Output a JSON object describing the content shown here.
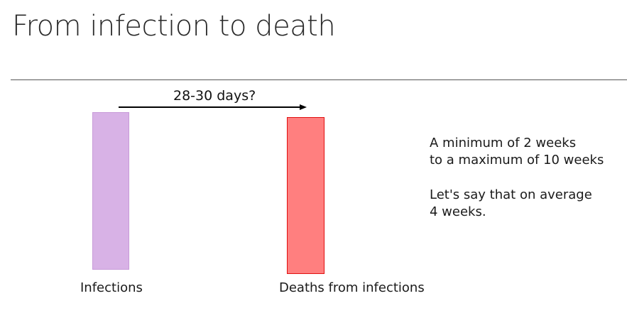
{
  "slide": {
    "title": "From infection to death"
  },
  "arrow": {
    "label": "28-30 days?"
  },
  "bars": {
    "infections": {
      "label": "Infections",
      "fill": "#d8b2e6",
      "stroke": "#c79bd8"
    },
    "deaths": {
      "label": "Deaths from infections",
      "fill": "#ff7f7f",
      "stroke": "#e01010"
    }
  },
  "notes": {
    "range_lines": [
      "A minimum of 2 weeks",
      "to a maximum of 10 weeks"
    ],
    "average_lines": [
      "Let's say that on average",
      "4 weeks."
    ]
  }
}
